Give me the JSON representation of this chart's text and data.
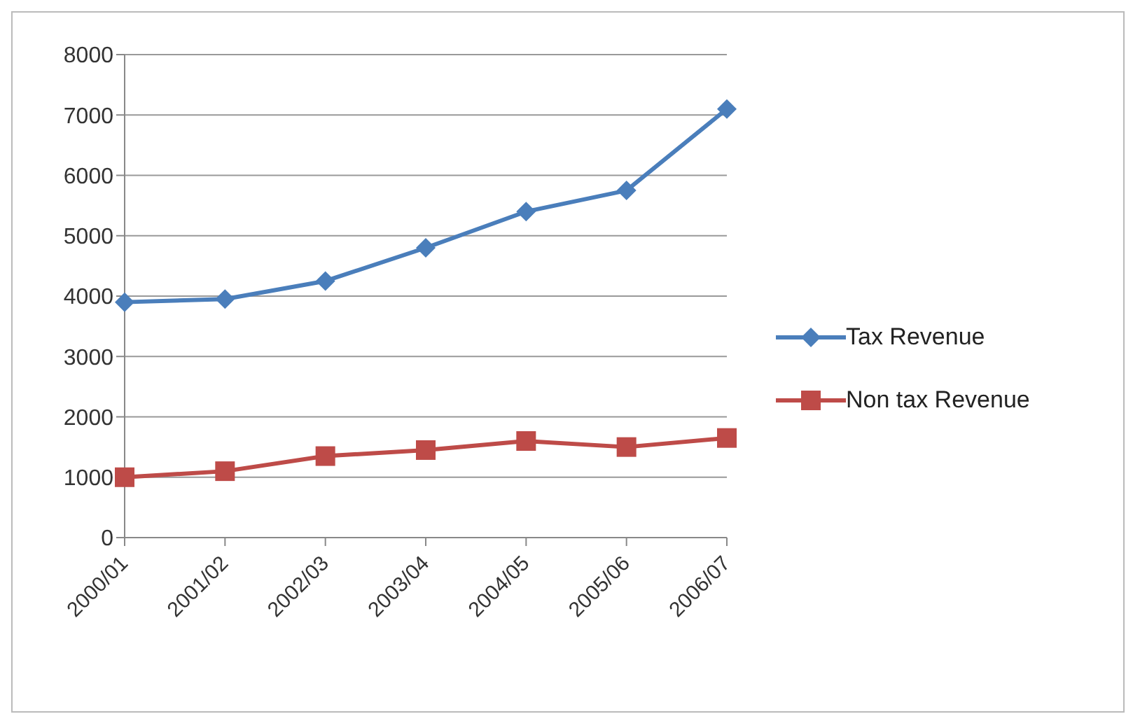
{
  "chart_data": {
    "type": "line",
    "categories": [
      "2000/01",
      "2001/02",
      "2002/03",
      "2003/04",
      "2004/05",
      "2005/06",
      "2006/07"
    ],
    "series": [
      {
        "name": "Tax Revenue",
        "color": "#4a7ebb",
        "values": [
          3900,
          3950,
          4250,
          4800,
          5400,
          5750,
          7100
        ],
        "marker": "diamond"
      },
      {
        "name": "Non tax Revenue",
        "color": "#be4b48",
        "values": [
          1000,
          1100,
          1350,
          1450,
          1600,
          1500,
          1650
        ],
        "marker": "square"
      }
    ],
    "ylim": [
      0,
      8000
    ],
    "yticks": [
      0,
      1000,
      2000,
      3000,
      4000,
      5000,
      6000,
      7000,
      8000
    ],
    "grid": "y",
    "legend": "right"
  }
}
